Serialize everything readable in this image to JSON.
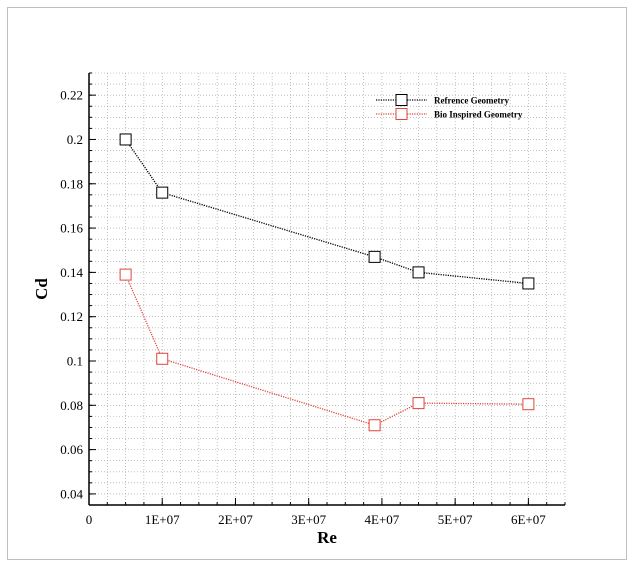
{
  "chart_data": {
    "type": "line",
    "title": "",
    "xlabel": "Re",
    "ylabel": "Cd",
    "xlim": [
      0,
      65000000
    ],
    "ylim": [
      0.035,
      0.23
    ],
    "x_ticks": [
      0,
      10000000,
      20000000,
      30000000,
      40000000,
      50000000,
      60000000
    ],
    "x_tick_labels": [
      "0",
      "1E+07",
      "2E+07",
      "3E+07",
      "4E+07",
      "5E+07",
      "6E+07"
    ],
    "y_ticks": [
      0.04,
      0.06,
      0.08,
      0.1,
      0.12,
      0.14,
      0.16,
      0.18,
      0.2,
      0.22
    ],
    "y_tick_labels": [
      "0.04",
      "0.06",
      "0.08",
      "0.1",
      "0.12",
      "0.14",
      "0.16",
      "0.18",
      "0.2",
      "0.22"
    ],
    "grid": true,
    "legend_position": "top-right",
    "x": [
      5000000,
      10000000,
      39000000,
      45000000,
      60000000
    ],
    "series": [
      {
        "name": "Refrence Geometry",
        "color": "#000000",
        "marker": "open-square",
        "values": [
          0.2,
          0.176,
          0.147,
          0.14,
          0.135
        ]
      },
      {
        "name": "Bio Inspired Geometry",
        "color": "#e0463c",
        "marker": "open-square",
        "values": [
          0.139,
          0.101,
          0.071,
          0.081,
          0.0805
        ]
      }
    ]
  }
}
